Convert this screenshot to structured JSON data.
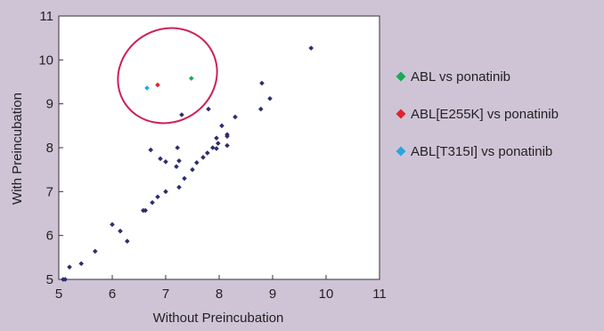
{
  "chart_data": {
    "type": "scatter",
    "xlabel": "Without Preincubation",
    "ylabel": "With Preincubation",
    "xlim": [
      5,
      11
    ],
    "ylim": [
      5,
      11
    ],
    "xticks": [
      "5",
      "6",
      "7",
      "8",
      "9",
      "10",
      "11"
    ],
    "yticks": [
      "5",
      "6",
      "7",
      "8",
      "9",
      "10",
      "11"
    ],
    "grid": false,
    "legend_position": "right",
    "annotations": [
      {
        "type": "ellipse",
        "color": "#cc2255",
        "description": "highlights the three colored points"
      }
    ],
    "series": [
      {
        "color": "#2e2d6e",
        "points": [
          [
            5.08,
            5.0
          ],
          [
            5.12,
            5.0
          ],
          [
            5.2,
            5.28
          ],
          [
            5.42,
            5.36
          ],
          [
            5.68,
            5.64
          ],
          [
            6.0,
            6.25
          ],
          [
            6.15,
            6.1
          ],
          [
            6.28,
            5.87
          ],
          [
            6.58,
            6.57
          ],
          [
            6.62,
            6.57
          ],
          [
            6.75,
            6.75
          ],
          [
            6.85,
            6.88
          ],
          [
            7.0,
            7.0
          ],
          [
            7.25,
            7.1
          ],
          [
            7.35,
            7.3
          ],
          [
            7.5,
            7.5
          ],
          [
            7.58,
            7.66
          ],
          [
            7.7,
            7.78
          ],
          [
            7.78,
            7.88
          ],
          [
            7.88,
            8.0
          ],
          [
            7.95,
            7.98
          ],
          [
            7.98,
            8.1
          ],
          [
            7.95,
            8.22
          ],
          [
            8.05,
            8.5
          ],
          [
            8.15,
            8.05
          ],
          [
            8.15,
            8.26
          ],
          [
            8.15,
            8.3
          ],
          [
            8.3,
            8.7
          ],
          [
            6.72,
            7.95
          ],
          [
            6.9,
            7.75
          ],
          [
            7.0,
            7.68
          ],
          [
            7.2,
            7.57
          ],
          [
            7.22,
            8.0
          ],
          [
            7.25,
            7.7
          ],
          [
            7.3,
            8.75
          ],
          [
            7.8,
            8.88
          ],
          [
            8.78,
            8.88
          ],
          [
            8.8,
            9.47
          ],
          [
            8.95,
            9.12
          ],
          [
            9.72,
            10.27
          ]
        ]
      },
      {
        "name": "ABL vs ponatinib",
        "color": "#1aaa55",
        "points": [
          [
            7.48,
            9.58
          ]
        ]
      },
      {
        "name": "ABL[E255K] vs ponatinib",
        "color": "#e0242d",
        "points": [
          [
            6.85,
            9.43
          ]
        ]
      },
      {
        "name": "ABL[T315I] vs ponatinib",
        "color": "#27a7df",
        "points": [
          [
            6.65,
            9.36
          ]
        ]
      }
    ]
  }
}
